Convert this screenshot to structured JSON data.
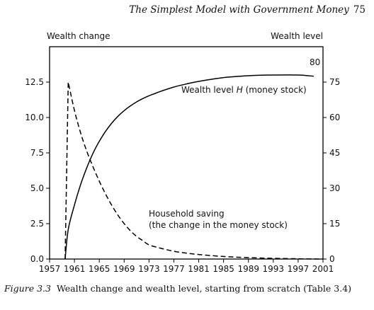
{
  "header": {
    "running_title": "The Simplest Model with Government Money",
    "page_number": "75"
  },
  "caption": {
    "label": "Figure 3.3",
    "text": "Wealth change and wealth level, starting from scratch (Table 3.4)"
  },
  "chart_data": {
    "type": "line",
    "left_axis_title": "Wealth change",
    "right_axis_title": "Wealth level",
    "x_ticks": [
      1957,
      1961,
      1965,
      1969,
      1973,
      1977,
      1981,
      1985,
      1989,
      1993,
      1997,
      2001
    ],
    "xlim": [
      1957,
      2001
    ],
    "y_left_ticks": [
      "0.0",
      "2.5",
      "5.0",
      "7.5",
      "10.0",
      "12.5"
    ],
    "ylim_left": [
      0,
      15
    ],
    "y_right_ticks": [
      "0",
      "15",
      "30",
      "45",
      "60",
      "75"
    ],
    "ylim_right": [
      0,
      90
    ],
    "grid": false,
    "series": [
      {
        "name": "Wealth level H (money stock)",
        "axis": "right",
        "style": "solid",
        "color": "#000000",
        "x": [
          1959.5,
          1960,
          1961,
          1962,
          1963,
          1964,
          1965,
          1966,
          1967,
          1968,
          1969,
          1970,
          1971,
          1972,
          1973,
          1974,
          1975,
          1977,
          1979,
          1981,
          1985,
          1989,
          1993,
          1997,
          1999.5
        ],
        "y": [
          0,
          12.5,
          22.9,
          31.6,
          38.8,
          44.9,
          49.9,
          54.1,
          57.6,
          60.5,
          62.9,
          64.9,
          66.6,
          68.0,
          69.2,
          70.2,
          71.2,
          72.9,
          74.2,
          75.3,
          76.9,
          77.7,
          78.0,
          78.0,
          77.5
        ]
      },
      {
        "name": "Household saving (the change in the money stock)",
        "axis": "left",
        "style": "dashed",
        "color": "#000000",
        "x": [
          1959.5,
          1960,
          1961,
          1962,
          1963,
          1964,
          1965,
          1966,
          1967,
          1968,
          1969,
          1970,
          1971,
          1972,
          1973,
          1975,
          1977,
          1979,
          1981,
          1985,
          1989,
          1993,
          1997,
          2001
        ],
        "y": [
          0,
          12.5,
          10.5,
          8.9,
          7.6,
          6.5,
          5.5,
          4.6,
          3.8,
          3.1,
          2.5,
          2.0,
          1.6,
          1.3,
          1.0,
          0.75,
          0.55,
          0.42,
          0.32,
          0.18,
          0.1,
          0.05,
          0.02,
          0.0
        ]
      }
    ],
    "annotations": {
      "wealth_level_prefix": "Wealth level ",
      "wealth_level_var": "H",
      "wealth_level_suffix": " (money stock)",
      "saving_line1": "Household saving",
      "saving_line2": "(the change in the money stock)",
      "end_value": "80"
    }
  }
}
